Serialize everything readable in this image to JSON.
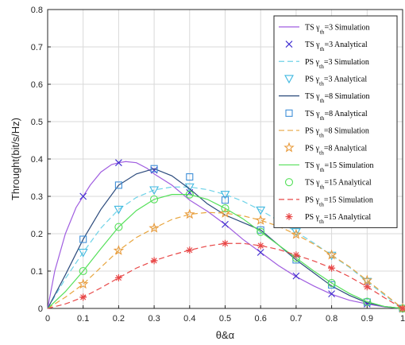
{
  "chart_data": {
    "type": "line",
    "xlabel": "θ&α",
    "ylabel": "Throught(bit/s/Hz)",
    "xlim": [
      0,
      1
    ],
    "ylim": [
      0,
      0.8
    ],
    "xticks": [
      0,
      0.1,
      0.2,
      0.3,
      0.4,
      0.5,
      0.6,
      0.7,
      0.8,
      0.9,
      1
    ],
    "yticks": [
      0,
      0.1,
      0.2,
      0.3,
      0.4,
      0.5,
      0.6,
      0.7,
      0.8
    ],
    "grid": true,
    "legend_position": "top-right",
    "series": [
      {
        "name": "TS γ_th=3 Simulation",
        "label": {
          "pre": "TS γ",
          "sub": "th",
          "post": "=3 Simulation"
        },
        "kind": "line",
        "style": "solid",
        "color": "#a05ee0",
        "x": [
          0,
          0.02,
          0.05,
          0.08,
          0.1,
          0.12,
          0.15,
          0.18,
          0.2,
          0.22,
          0.25,
          0.28,
          0.3,
          0.35,
          0.4,
          0.45,
          0.5,
          0.55,
          0.6,
          0.65,
          0.7,
          0.75,
          0.8,
          0.85,
          0.9,
          0.95,
          1
        ],
        "y": [
          0,
          0.1,
          0.2,
          0.27,
          0.3,
          0.33,
          0.365,
          0.385,
          0.39,
          0.393,
          0.39,
          0.375,
          0.36,
          0.33,
          0.29,
          0.26,
          0.225,
          0.185,
          0.15,
          0.115,
          0.085,
          0.06,
          0.038,
          0.022,
          0.012,
          0.004,
          0
        ]
      },
      {
        "name": "TS γ_th=3 Analytical",
        "label": {
          "pre": "TS γ",
          "sub": "th",
          "post": "=3 Analytical"
        },
        "kind": "marker",
        "marker": "x",
        "color": "#3d2bd0",
        "x": [
          0.1,
          0.2,
          0.3,
          0.4,
          0.5,
          0.6,
          0.7,
          0.8,
          0.9,
          1
        ],
        "y": [
          0.3,
          0.39,
          0.37,
          0.31,
          0.225,
          0.15,
          0.087,
          0.039,
          0.012,
          0
        ]
      },
      {
        "name": "PS γ_th=3 Simulation",
        "label": {
          "pre": "PS γ",
          "sub": "th",
          "post": "=3 Simulation"
        },
        "kind": "line",
        "style": "dashed",
        "color": "#6fd3e8",
        "x": [
          0,
          0.05,
          0.1,
          0.15,
          0.2,
          0.25,
          0.3,
          0.35,
          0.4,
          0.45,
          0.5,
          0.55,
          0.6,
          0.65,
          0.7,
          0.75,
          0.8,
          0.85,
          0.9,
          0.95,
          1
        ],
        "y": [
          0,
          0.08,
          0.15,
          0.215,
          0.265,
          0.297,
          0.317,
          0.325,
          0.325,
          0.318,
          0.305,
          0.287,
          0.263,
          0.235,
          0.205,
          0.175,
          0.142,
          0.11,
          0.072,
          0.035,
          0
        ]
      },
      {
        "name": "PS γ_th=3 Analytical",
        "label": {
          "pre": "PS γ",
          "sub": "th",
          "post": "=3 Analytical"
        },
        "kind": "marker",
        "marker": "triangle-down",
        "color": "#3fb8e0",
        "x": [
          0.1,
          0.2,
          0.3,
          0.4,
          0.5,
          0.6,
          0.7,
          0.8,
          0.9,
          1
        ],
        "y": [
          0.15,
          0.265,
          0.317,
          0.325,
          0.305,
          0.263,
          0.205,
          0.142,
          0.072,
          0
        ]
      },
      {
        "name": "TS γ_th=8 Simulation",
        "label": {
          "pre": "TS γ",
          "sub": "th",
          "post": "=8 Simulation"
        },
        "kind": "line",
        "style": "solid",
        "color": "#2b4a7c",
        "x": [
          0,
          0.05,
          0.1,
          0.15,
          0.2,
          0.25,
          0.3,
          0.35,
          0.4,
          0.45,
          0.5,
          0.55,
          0.6,
          0.65,
          0.7,
          0.75,
          0.8,
          0.85,
          0.9,
          0.95,
          1
        ],
        "y": [
          0,
          0.09,
          0.185,
          0.265,
          0.33,
          0.36,
          0.374,
          0.355,
          0.32,
          0.28,
          0.25,
          0.23,
          0.21,
          0.17,
          0.13,
          0.095,
          0.06,
          0.035,
          0.015,
          0.005,
          0
        ]
      },
      {
        "name": "TS γ_th=8 Analytical",
        "label": {
          "pre": "TS γ",
          "sub": "th",
          "post": "=8 Analytical"
        },
        "kind": "marker",
        "marker": "square",
        "color": "#3f8fd8",
        "x": [
          0.1,
          0.2,
          0.3,
          0.4,
          0.5,
          0.6,
          0.7,
          0.8,
          0.9,
          1
        ],
        "y": [
          0.185,
          0.33,
          0.374,
          0.352,
          0.29,
          0.21,
          0.13,
          0.063,
          0.017,
          0
        ]
      },
      {
        "name": "PS γ_th=8 Simulation",
        "label": {
          "pre": "PS γ",
          "sub": "th",
          "post": "=8 Simulation"
        },
        "kind": "line",
        "style": "dashed",
        "color": "#e8a640",
        "x": [
          0,
          0.05,
          0.1,
          0.15,
          0.2,
          0.25,
          0.3,
          0.35,
          0.4,
          0.45,
          0.5,
          0.55,
          0.6,
          0.65,
          0.7,
          0.75,
          0.8,
          0.85,
          0.9,
          0.95,
          1
        ],
        "y": [
          0,
          0.03,
          0.065,
          0.11,
          0.155,
          0.19,
          0.215,
          0.238,
          0.252,
          0.257,
          0.255,
          0.248,
          0.236,
          0.22,
          0.198,
          0.172,
          0.143,
          0.112,
          0.075,
          0.038,
          0
        ]
      },
      {
        "name": "PS γ_th=8 Analytical",
        "label": {
          "pre": "PS γ",
          "sub": "th",
          "post": "=8 Analytical"
        },
        "kind": "marker",
        "marker": "star",
        "color": "#e89a3a",
        "x": [
          0.1,
          0.2,
          0.3,
          0.4,
          0.5,
          0.6,
          0.7,
          0.8,
          0.9,
          1
        ],
        "y": [
          0.065,
          0.155,
          0.215,
          0.252,
          0.255,
          0.236,
          0.198,
          0.143,
          0.075,
          0
        ]
      },
      {
        "name": "TS γ_th=15 Simulation",
        "label": {
          "pre": "TS γ",
          "sub": "th",
          "post": "=15 Simulation"
        },
        "kind": "line",
        "style": "solid",
        "color": "#55e05a",
        "x": [
          0,
          0.05,
          0.1,
          0.15,
          0.2,
          0.25,
          0.3,
          0.35,
          0.4,
          0.45,
          0.5,
          0.55,
          0.6,
          0.65,
          0.7,
          0.75,
          0.8,
          0.85,
          0.9,
          0.95,
          1
        ],
        "y": [
          0,
          0.045,
          0.1,
          0.16,
          0.218,
          0.262,
          0.292,
          0.305,
          0.305,
          0.292,
          0.268,
          0.24,
          0.205,
          0.17,
          0.135,
          0.1,
          0.068,
          0.04,
          0.018,
          0.005,
          0
        ]
      },
      {
        "name": "TS γ_th=15 Analytical",
        "label": {
          "pre": "TS γ",
          "sub": "th",
          "post": "=15 Analytical"
        },
        "kind": "marker",
        "marker": "circle",
        "color": "#55e05a",
        "x": [
          0.1,
          0.2,
          0.3,
          0.4,
          0.5,
          0.6,
          0.7,
          0.8,
          0.9,
          1
        ],
        "y": [
          0.1,
          0.218,
          0.292,
          0.305,
          0.268,
          0.205,
          0.135,
          0.068,
          0.018,
          0
        ]
      },
      {
        "name": "PS γ_th=15 Simulation",
        "label": {
          "pre": "PS γ",
          "sub": "th",
          "post": "=15 Simulation"
        },
        "kind": "line",
        "style": "dashed",
        "color": "#e84848",
        "x": [
          0,
          0.05,
          0.1,
          0.15,
          0.2,
          0.25,
          0.3,
          0.35,
          0.4,
          0.45,
          0.5,
          0.55,
          0.6,
          0.65,
          0.7,
          0.75,
          0.8,
          0.85,
          0.9,
          0.95,
          1
        ],
        "y": [
          0,
          0.012,
          0.03,
          0.055,
          0.082,
          0.108,
          0.128,
          0.143,
          0.156,
          0.167,
          0.174,
          0.174,
          0.168,
          0.158,
          0.143,
          0.127,
          0.108,
          0.085,
          0.058,
          0.028,
          0
        ]
      },
      {
        "name": "PS γ_th=15 Analytical",
        "label": {
          "pre": "PS γ",
          "sub": "th",
          "post": "=15 Analytical"
        },
        "kind": "marker",
        "marker": "asterisk",
        "color": "#e84848",
        "x": [
          0.1,
          0.2,
          0.3,
          0.4,
          0.5,
          0.6,
          0.7,
          0.8,
          0.9,
          1
        ],
        "y": [
          0.03,
          0.082,
          0.128,
          0.156,
          0.174,
          0.168,
          0.143,
          0.108,
          0.058,
          0
        ]
      }
    ]
  }
}
